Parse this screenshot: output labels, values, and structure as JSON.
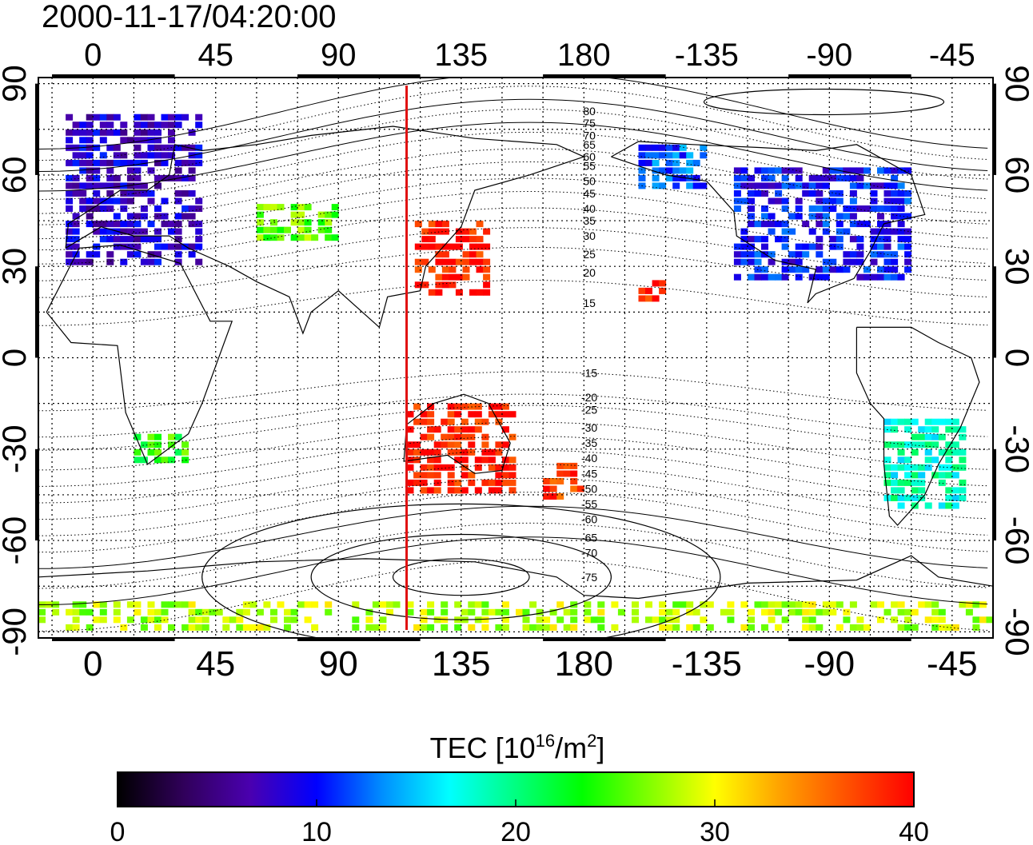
{
  "title": "2000-11-17/04:20:00",
  "map": {
    "x_ticks": [
      0,
      45,
      90,
      135,
      180,
      -135,
      -90,
      -45
    ],
    "y_ticks_left": [
      90,
      60,
      30,
      0,
      -30,
      -60,
      -90
    ],
    "y_ticks_right": [
      90,
      60,
      30,
      0,
      -30,
      -60,
      -90
    ],
    "longitude_range": [
      -20,
      330
    ],
    "latitude_range": [
      -92,
      92
    ],
    "grid": true,
    "meridian_marker": {
      "longitude": 115,
      "color": "#e01010"
    },
    "magnetic_contour_labels": [
      {
        "value": "80",
        "lat": 81
      },
      {
        "value": "75",
        "lat": 77
      },
      {
        "value": "70",
        "lat": 73
      },
      {
        "value": "65",
        "lat": 70
      },
      {
        "value": "60",
        "lat": 66
      },
      {
        "value": "55",
        "lat": 63
      },
      {
        "value": "50",
        "lat": 58
      },
      {
        "value": "45",
        "lat": 54
      },
      {
        "value": "40",
        "lat": 49
      },
      {
        "value": "35",
        "lat": 45
      },
      {
        "value": "30",
        "lat": 40
      },
      {
        "value": "25",
        "lat": 34
      },
      {
        "value": "20",
        "lat": 28
      },
      {
        "value": "15",
        "lat": 18
      },
      {
        "value": "-15",
        "lat": -5
      },
      {
        "value": "-20",
        "lat": -13
      },
      {
        "value": "-25",
        "lat": -17
      },
      {
        "value": "-30",
        "lat": -23
      },
      {
        "value": "-35",
        "lat": -28
      },
      {
        "value": "-40",
        "lat": -33
      },
      {
        "value": "-45",
        "lat": -38
      },
      {
        "value": "-50",
        "lat": -43
      },
      {
        "value": "-55",
        "lat": -48
      },
      {
        "value": "-60",
        "lat": -53
      },
      {
        "value": "-65",
        "lat": -59
      },
      {
        "value": "-70",
        "lat": -64
      },
      {
        "value": "-75",
        "lat": -72
      }
    ],
    "tec_regions": [
      {
        "name": "europe",
        "lon": [
          -10,
          40
        ],
        "lat": [
          30,
          80
        ],
        "tec": 8
      },
      {
        "name": "north-america",
        "lon": [
          235,
          300
        ],
        "lat": [
          25,
          62
        ],
        "tec": 10
      },
      {
        "name": "alaska",
        "lon": [
          200,
          225
        ],
        "lat": [
          55,
          70
        ],
        "tec": 12
      },
      {
        "name": "east-asia",
        "lon": [
          118,
          145
        ],
        "lat": [
          20,
          45
        ],
        "tec": 39
      },
      {
        "name": "australia",
        "lon": [
          115,
          155
        ],
        "lat": [
          -45,
          -15
        ],
        "tec": 39
      },
      {
        "name": "new-zealand",
        "lon": [
          165,
          180
        ],
        "lat": [
          -47,
          -35
        ],
        "tec": 38
      },
      {
        "name": "southern-africa",
        "lon": [
          15,
          35
        ],
        "lat": [
          -35,
          -25
        ],
        "tec": 24
      },
      {
        "name": "south-america",
        "lon": [
          290,
          320
        ],
        "lat": [
          -50,
          -20
        ],
        "tec": 18
      },
      {
        "name": "central-asia",
        "lon": [
          60,
          90
        ],
        "lat": [
          38,
          50
        ],
        "tec": 26
      },
      {
        "name": "hawaii",
        "lon": [
          200,
          210
        ],
        "lat": [
          18,
          25
        ],
        "tec": 39
      },
      {
        "name": "antarctica",
        "lon": [
          -20,
          330
        ],
        "lat": [
          -90,
          -82
        ],
        "tec": 28
      }
    ]
  },
  "colorbar": {
    "label_main": "TEC  [10",
    "label_sup1": "16",
    "label_mid": "/m",
    "label_sup2": "2",
    "label_end": "]",
    "min": 0,
    "max": 40,
    "ticks": [
      0,
      10,
      20,
      30,
      40
    ],
    "colors": [
      "#000000",
      "#30005a",
      "#4a00b0",
      "#0000ff",
      "#0090ff",
      "#00ffff",
      "#00ff80",
      "#00ff00",
      "#80ff00",
      "#ffff00",
      "#ffa000",
      "#ff5000",
      "#ff0000"
    ]
  }
}
